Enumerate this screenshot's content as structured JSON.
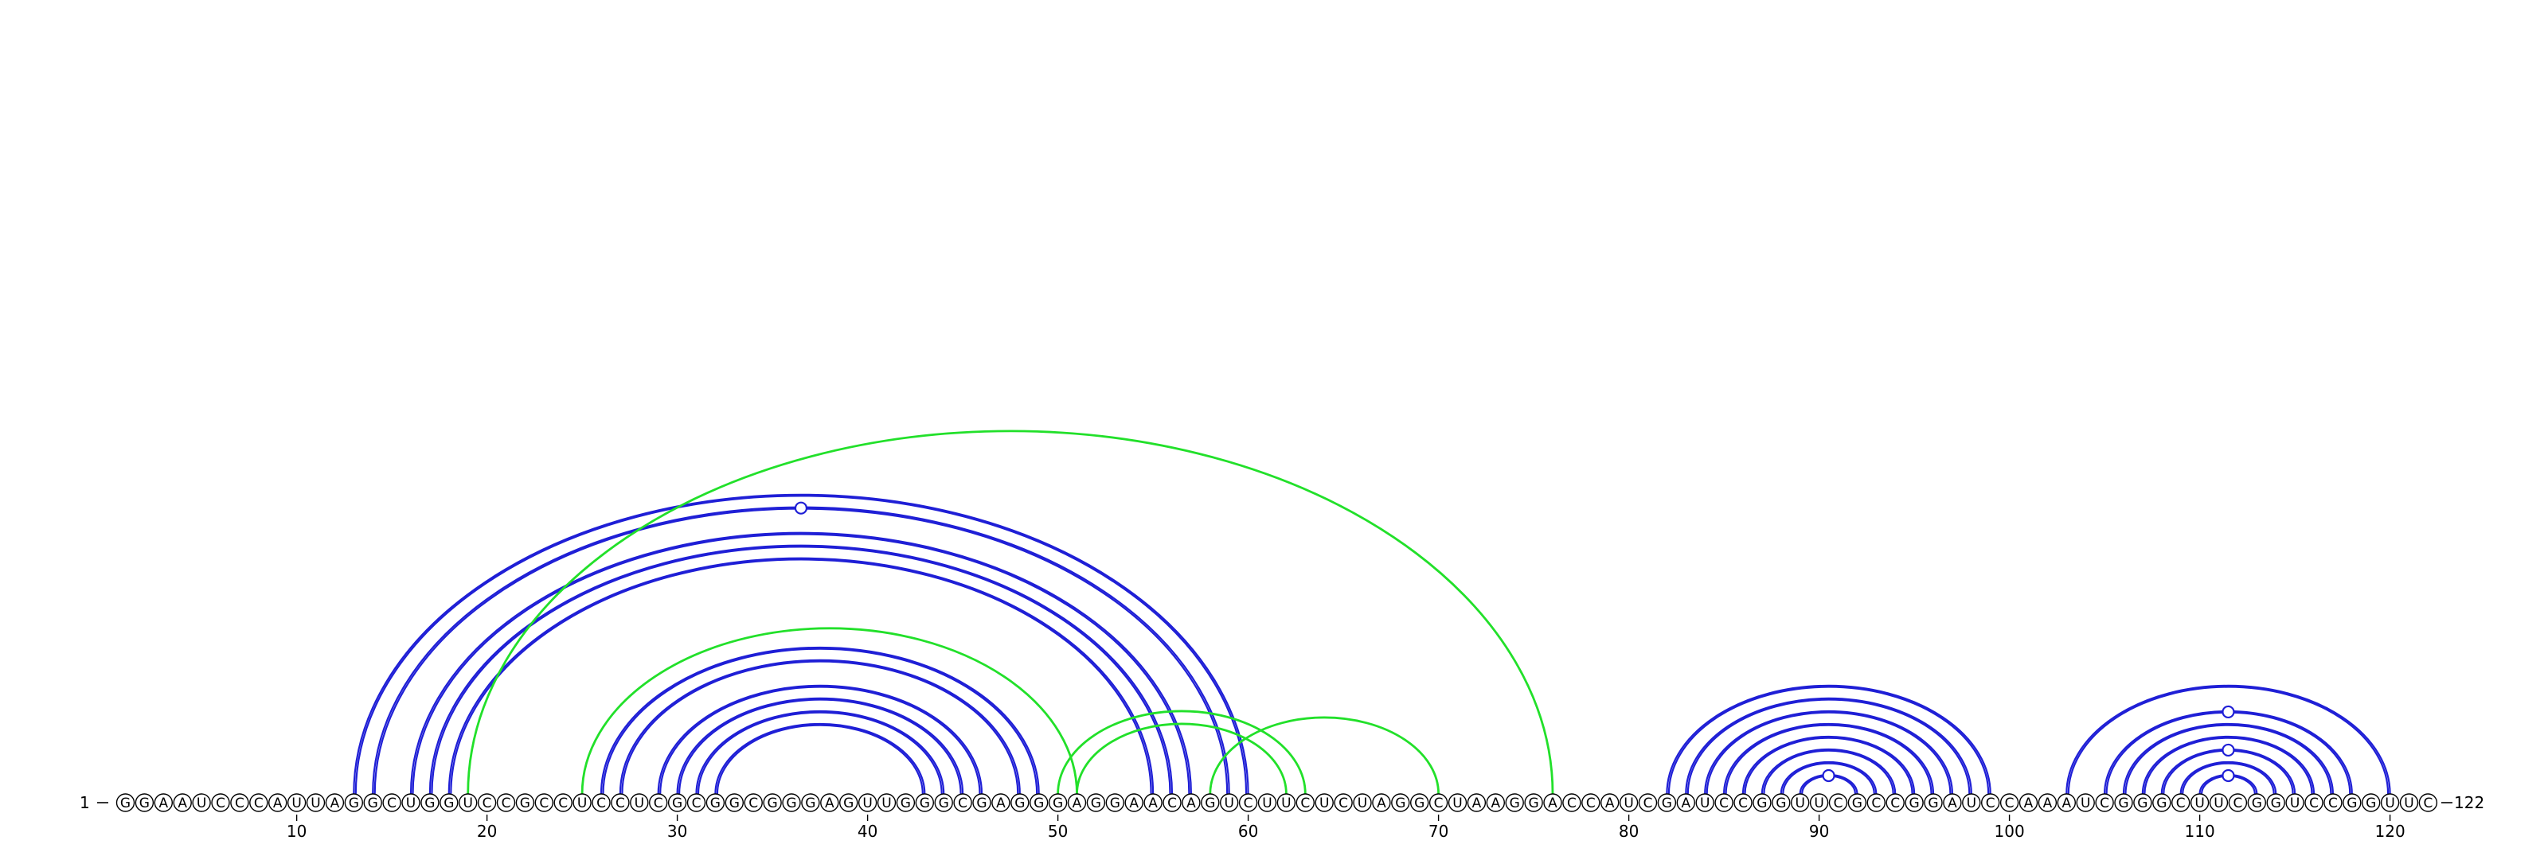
{
  "sequence": "GGAAUCCCAUUAGGCUGGUCCGCCUCCUCGCGGCGGGAGUUGGGCGAGGGAGGAACAGUCUUCUCUAGGCUAAGGACCAUCGAUCCGGUUCGCCGGAUCCAAAUCGGGCUUCGGUCCGGUUC",
  "start_label": "1",
  "end_label": "122",
  "ticks": [
    10,
    20,
    30,
    40,
    50,
    60,
    70,
    80,
    90,
    100,
    110,
    120
  ],
  "colors": {
    "blue": "#1f1fd6",
    "green": "#22e02a"
  },
  "blue_pairs": [
    [
      13,
      60
    ],
    [
      14,
      59
    ],
    [
      16,
      57
    ],
    [
      17,
      56
    ],
    [
      18,
      55
    ],
    [
      26,
      49
    ],
    [
      27,
      48
    ],
    [
      29,
      46
    ],
    [
      30,
      45
    ],
    [
      31,
      44
    ],
    [
      32,
      43
    ],
    [
      82,
      99
    ],
    [
      83,
      98
    ],
    [
      84,
      97
    ],
    [
      85,
      96
    ],
    [
      86,
      95
    ],
    [
      87,
      94
    ],
    [
      88,
      93
    ],
    [
      89,
      92
    ],
    [
      103,
      120
    ],
    [
      105,
      118
    ],
    [
      106,
      117
    ],
    [
      107,
      116
    ],
    [
      108,
      115
    ],
    [
      109,
      114
    ],
    [
      110,
      113
    ]
  ],
  "green_pairs": [
    [
      19,
      76
    ],
    [
      25,
      51
    ],
    [
      51,
      62
    ],
    [
      50,
      63
    ],
    [
      58,
      70
    ]
  ],
  "markers": [
    {
      "i": 14,
      "j": 59
    },
    {
      "i": 89,
      "j": 92
    },
    {
      "i": 105,
      "j": 118
    },
    {
      "i": 108,
      "j": 115
    },
    {
      "i": 110,
      "j": 113
    }
  ]
}
